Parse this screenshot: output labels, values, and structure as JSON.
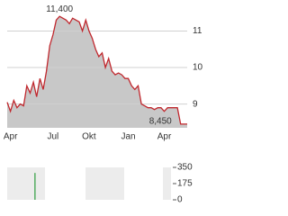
{
  "chart_data": [
    {
      "type": "area",
      "color": "#c0272d",
      "fill": "#c8c8c8",
      "grid": true,
      "categories": [
        null,
        "Apr",
        null,
        null,
        null,
        null,
        null,
        null,
        null,
        null,
        null,
        null,
        null,
        null,
        "Jul",
        null,
        null,
        null,
        null,
        null,
        null,
        null,
        null,
        null,
        null,
        "Okt",
        null,
        null,
        null,
        null,
        null,
        null,
        null,
        null,
        null,
        null,
        null,
        "Jan",
        null,
        null,
        null,
        null,
        null,
        null,
        null,
        null,
        null,
        null,
        "Apr",
        null,
        null,
        null,
        null,
        null,
        null,
        null
      ],
      "values": [
        9.05,
        8.8,
        9.1,
        8.9,
        9.0,
        8.95,
        9.5,
        9.3,
        9.6,
        9.2,
        9.7,
        9.4,
        9.9,
        10.6,
        10.9,
        11.3,
        11.4,
        11.35,
        11.3,
        11.2,
        11.35,
        11.3,
        11.25,
        11.0,
        11.3,
        11.0,
        10.8,
        10.5,
        10.3,
        10.4,
        10.0,
        10.25,
        9.9,
        9.8,
        9.85,
        9.8,
        9.7,
        9.7,
        9.5,
        9.4,
        9.5,
        9.0,
        8.95,
        8.9,
        8.9,
        8.85,
        8.9,
        8.9,
        8.8,
        8.9,
        8.9,
        8.9,
        8.9,
        8.45,
        8.45,
        8.45
      ],
      "ylim": [
        8.35,
        11.75
      ],
      "yticks": [
        9,
        10,
        11
      ],
      "annotations": [
        {
          "label": "11,400",
          "value": 11.4
        },
        {
          "label": "8,450",
          "value": 8.45
        }
      ]
    },
    {
      "type": "bar",
      "color": "#2e9e3e",
      "values": [
        0,
        0,
        0,
        0,
        0,
        0,
        0,
        0,
        0,
        290,
        0,
        0,
        0,
        0,
        0,
        0,
        0,
        0,
        0,
        0,
        0,
        0,
        0,
        0,
        0,
        0,
        0,
        0,
        0,
        0,
        0,
        0,
        0,
        0,
        0,
        0,
        0,
        0,
        0,
        0,
        0,
        0,
        0,
        0,
        0,
        0,
        0,
        0,
        0,
        0,
        0,
        0,
        0,
        0,
        0,
        0
      ],
      "ylim": [
        0,
        350
      ],
      "yticks": [
        0,
        175,
        350
      ]
    }
  ]
}
